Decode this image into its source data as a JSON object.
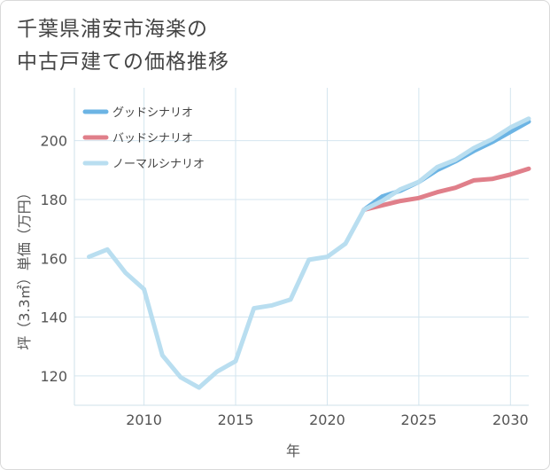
{
  "chart_data": {
    "type": "line",
    "title_line1": "千葉県浦安市海楽の",
    "title_line2": "中古戸建ての価格推移",
    "xlabel": "年",
    "ylabel": "坪（3.3㎡）単価（万円）",
    "xlim": [
      2006.2,
      2031
    ],
    "ylim": [
      110,
      218
    ],
    "xticks": [
      2010,
      2015,
      2020,
      2025,
      2030
    ],
    "yticks": [
      120,
      140,
      160,
      180,
      200
    ],
    "series": [
      {
        "name": "グッドシナリオ",
        "color": "#6cb4e4",
        "x": [
          2022,
          2023,
          2024,
          2025,
          2026,
          2027,
          2028,
          2029,
          2030,
          2031
        ],
        "values": [
          176.5,
          181.0,
          183.0,
          186.0,
          190.0,
          193.0,
          196.5,
          199.5,
          203.0,
          206.5
        ]
      },
      {
        "name": "バッドシナリオ",
        "color": "#e07f8a",
        "x": [
          2022,
          2023,
          2024,
          2025,
          2026,
          2027,
          2028,
          2029,
          2030,
          2031
        ],
        "values": [
          176.5,
          178.0,
          179.5,
          180.5,
          182.5,
          184.0,
          186.5,
          187.0,
          188.5,
          190.5
        ]
      },
      {
        "name": "ノーマルシナリオ",
        "color": "#b9def0",
        "x": [
          2007,
          2008,
          2009,
          2010,
          2011,
          2012,
          2013,
          2014,
          2015,
          2016,
          2017,
          2018,
          2019,
          2020,
          2021,
          2022,
          2023,
          2024,
          2025,
          2026,
          2027,
          2028,
          2029,
          2030,
          2031
        ],
        "values": [
          160.5,
          163.0,
          155.0,
          149.5,
          127.0,
          119.5,
          116.0,
          121.5,
          125.0,
          143.0,
          144.0,
          146.0,
          159.5,
          160.5,
          165.0,
          176.5,
          179.5,
          183.5,
          186.0,
          191.0,
          193.5,
          197.5,
          200.5,
          204.5,
          207.5
        ]
      }
    ]
  }
}
